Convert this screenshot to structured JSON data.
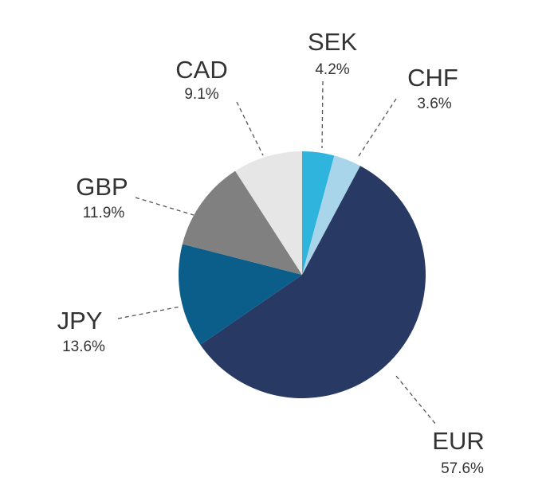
{
  "chart_data": {
    "type": "pie",
    "categories": [
      "SEK",
      "CHF",
      "EUR",
      "JPY",
      "GBP",
      "CAD"
    ],
    "values": [
      4.2,
      3.6,
      57.6,
      13.6,
      11.9,
      9.1
    ],
    "value_labels": [
      "4.2%",
      "3.6%",
      "57.6%",
      "13.6%",
      "11.9%",
      "9.1%"
    ],
    "colors": [
      "#2fb4dd",
      "#a8d5ea",
      "#283a63",
      "#0b5d8a",
      "#808080",
      "#e6e6e6"
    ]
  }
}
